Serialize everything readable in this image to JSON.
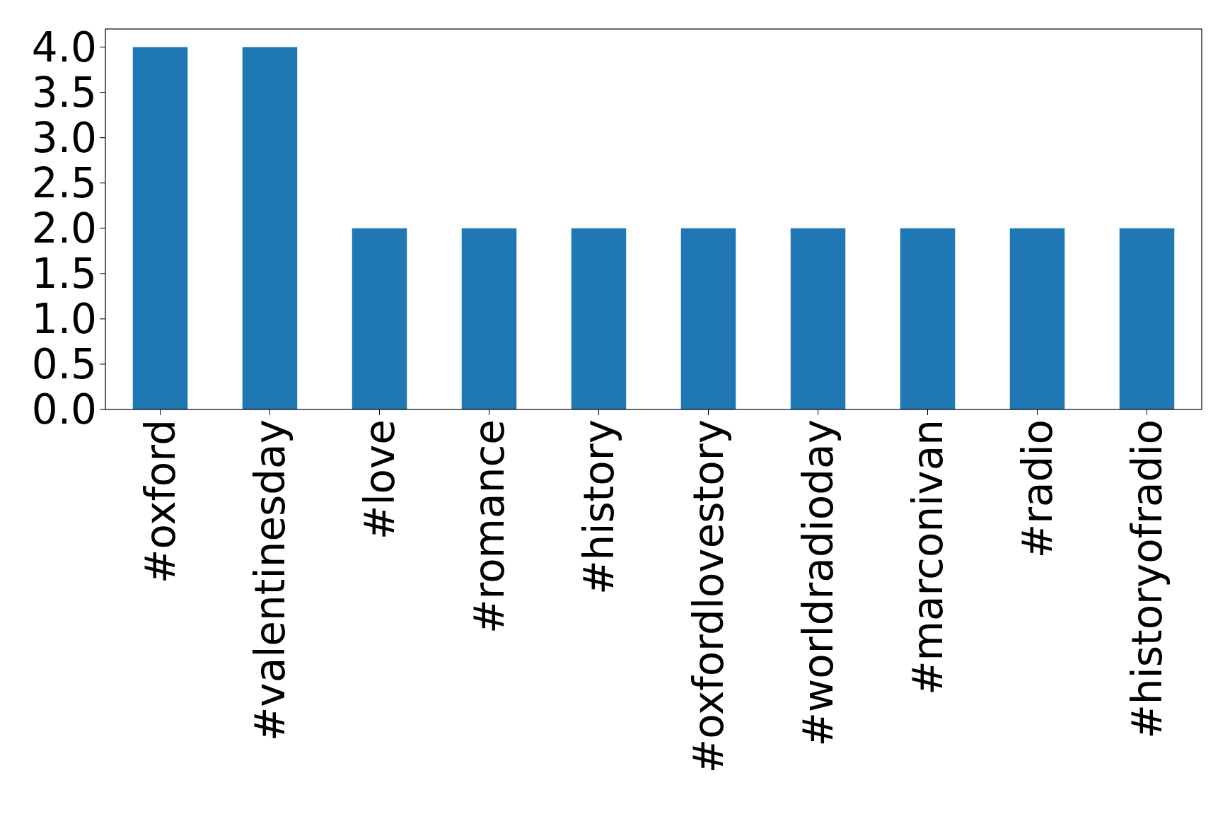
{
  "chart_data": {
    "type": "bar",
    "categories": [
      "#oxford",
      "#valentinesday",
      "#love",
      "#romance",
      "#history",
      "#oxfordlovestory",
      "#worldradioday",
      "#marconivan",
      "#radio",
      "#historyofradio"
    ],
    "values": [
      4,
      4,
      2,
      2,
      2,
      2,
      2,
      2,
      2,
      2
    ],
    "color": "#1f77b4",
    "ylim": [
      0,
      4.2
    ],
    "yticks": [
      {
        "value": 0,
        "label": "0.0"
      },
      {
        "value": 0.5,
        "label": "0.5"
      },
      {
        "value": 1,
        "label": "1.0"
      },
      {
        "value": 1.5,
        "label": "1.5"
      },
      {
        "value": 2,
        "label": "2.0"
      },
      {
        "value": 2.5,
        "label": "2.5"
      },
      {
        "value": 3,
        "label": "3.0"
      },
      {
        "value": 3.5,
        "label": "3.5"
      },
      {
        "value": 4,
        "label": "4.0"
      }
    ],
    "grid": false
  }
}
